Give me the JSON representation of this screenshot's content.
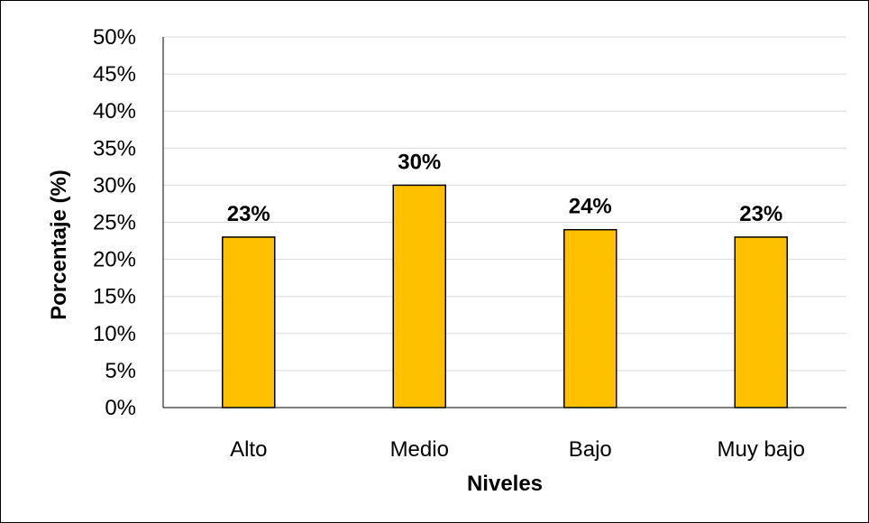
{
  "chart_data": {
    "type": "bar",
    "categories": [
      "Alto",
      "Medio",
      "Bajo",
      "Muy bajo"
    ],
    "values": [
      23,
      30,
      24,
      23
    ],
    "value_labels": [
      "23%",
      "30%",
      "24%",
      "23%"
    ],
    "title": "",
    "xlabel": "Niveles",
    "ylabel": "Porcentaje (%)",
    "ylim": [
      0,
      50
    ],
    "y_ticks": [
      "0%",
      "5%",
      "10%",
      "15%",
      "20%",
      "25%",
      "30%",
      "35%",
      "40%",
      "45%",
      "50%"
    ],
    "y_tick_values": [
      0,
      5,
      10,
      15,
      20,
      25,
      30,
      35,
      40,
      45,
      50
    ],
    "grid": true,
    "legend": "none",
    "colors": {
      "bar_fill": "#FFC000",
      "bar_stroke": "#000000",
      "grid": "#D9D9D9",
      "axis": "#000000",
      "text": "#000000"
    }
  }
}
